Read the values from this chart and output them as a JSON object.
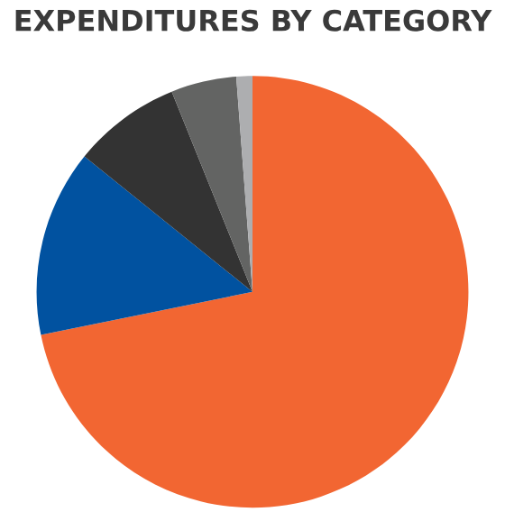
{
  "chart_data": {
    "type": "pie",
    "title": "EXPENDITURES BY CATEGORY",
    "categories": [
      null,
      null,
      null,
      null,
      null
    ],
    "values": [
      71.8,
      14.0,
      8.1,
      4.9,
      1.2
    ],
    "colors": [
      "#f26632",
      "#0152a0",
      "#333333",
      "#636463",
      "#adaeb0"
    ]
  }
}
